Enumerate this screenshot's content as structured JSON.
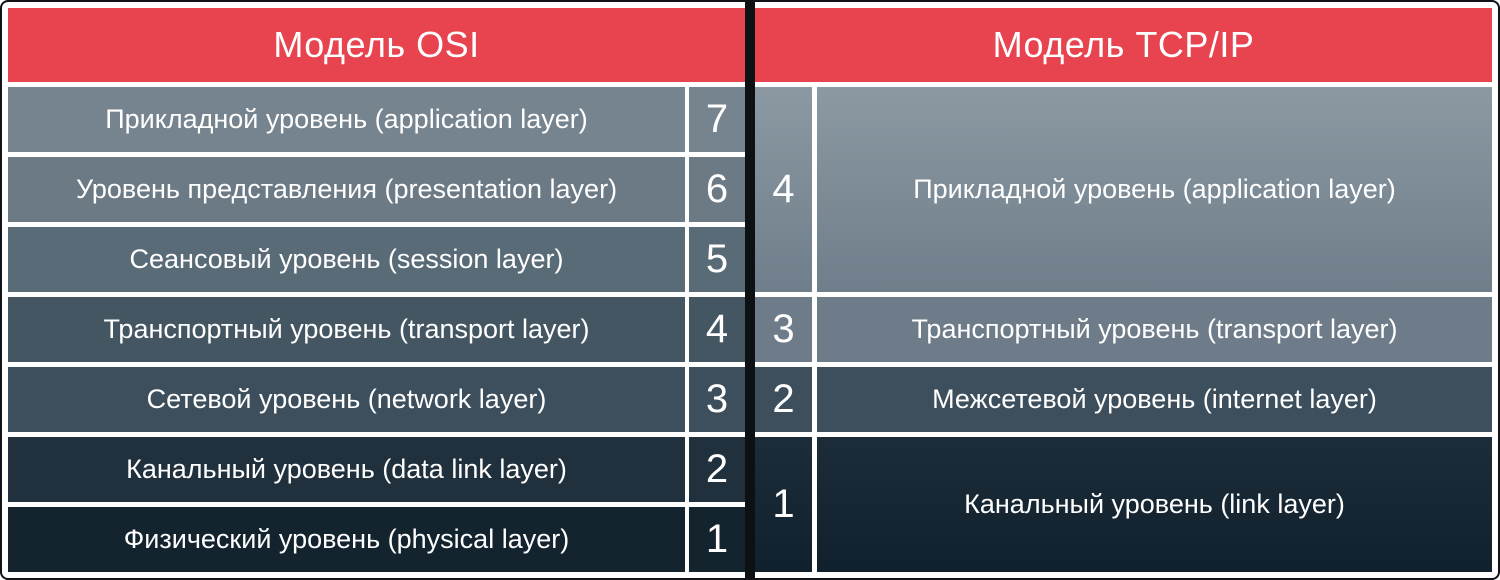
{
  "osi": {
    "title": "Модель OSI",
    "layers": [
      {
        "num": "7",
        "label": "Прикладной уровень (application layer)",
        "color": "#76848F"
      },
      {
        "num": "6",
        "label": "Уровень представления (presentation layer)",
        "color": "#6B7A85"
      },
      {
        "num": "5",
        "label": "Сеансовый уровень (session layer)",
        "color": "#596B76"
      },
      {
        "num": "4",
        "label": "Транспортный уровень (transport layer)",
        "color": "#455663"
      },
      {
        "num": "3",
        "label": "Сетевой уровень (network layer)",
        "color": "#3D4F5C"
      },
      {
        "num": "2",
        "label": "Канальный уровень (data link layer)",
        "color": "#20313D"
      },
      {
        "num": "1",
        "label": "Физический уровень (physical layer)",
        "color": "#13242F"
      }
    ]
  },
  "tcpip": {
    "title": "Модель TCP/IP",
    "layers": [
      {
        "num": "4",
        "label": "Прикладной уровень (application layer)",
        "osi_span": "7-5",
        "color": "linear-gradient(180deg, #8C99A3 0%, #6E7E8A 100%)"
      },
      {
        "num": "3",
        "label": "Транспортный уровень (transport layer)",
        "osi_span": "4",
        "color": "#6D7C88"
      },
      {
        "num": "2",
        "label": "Межсетевой уровень (internet layer)",
        "osi_span": "3",
        "color": "#3D4F5C"
      },
      {
        "num": "1",
        "label": "Канальный уровень (link layer)",
        "osi_span": "2-1",
        "color": "linear-gradient(180deg, #1C2D39 0%, #10212D 100%)"
      }
    ]
  },
  "colors": {
    "header": "#E74450",
    "divider": "#0D1114",
    "gap": "#FFFFFF",
    "text": "#FFFFFF"
  }
}
